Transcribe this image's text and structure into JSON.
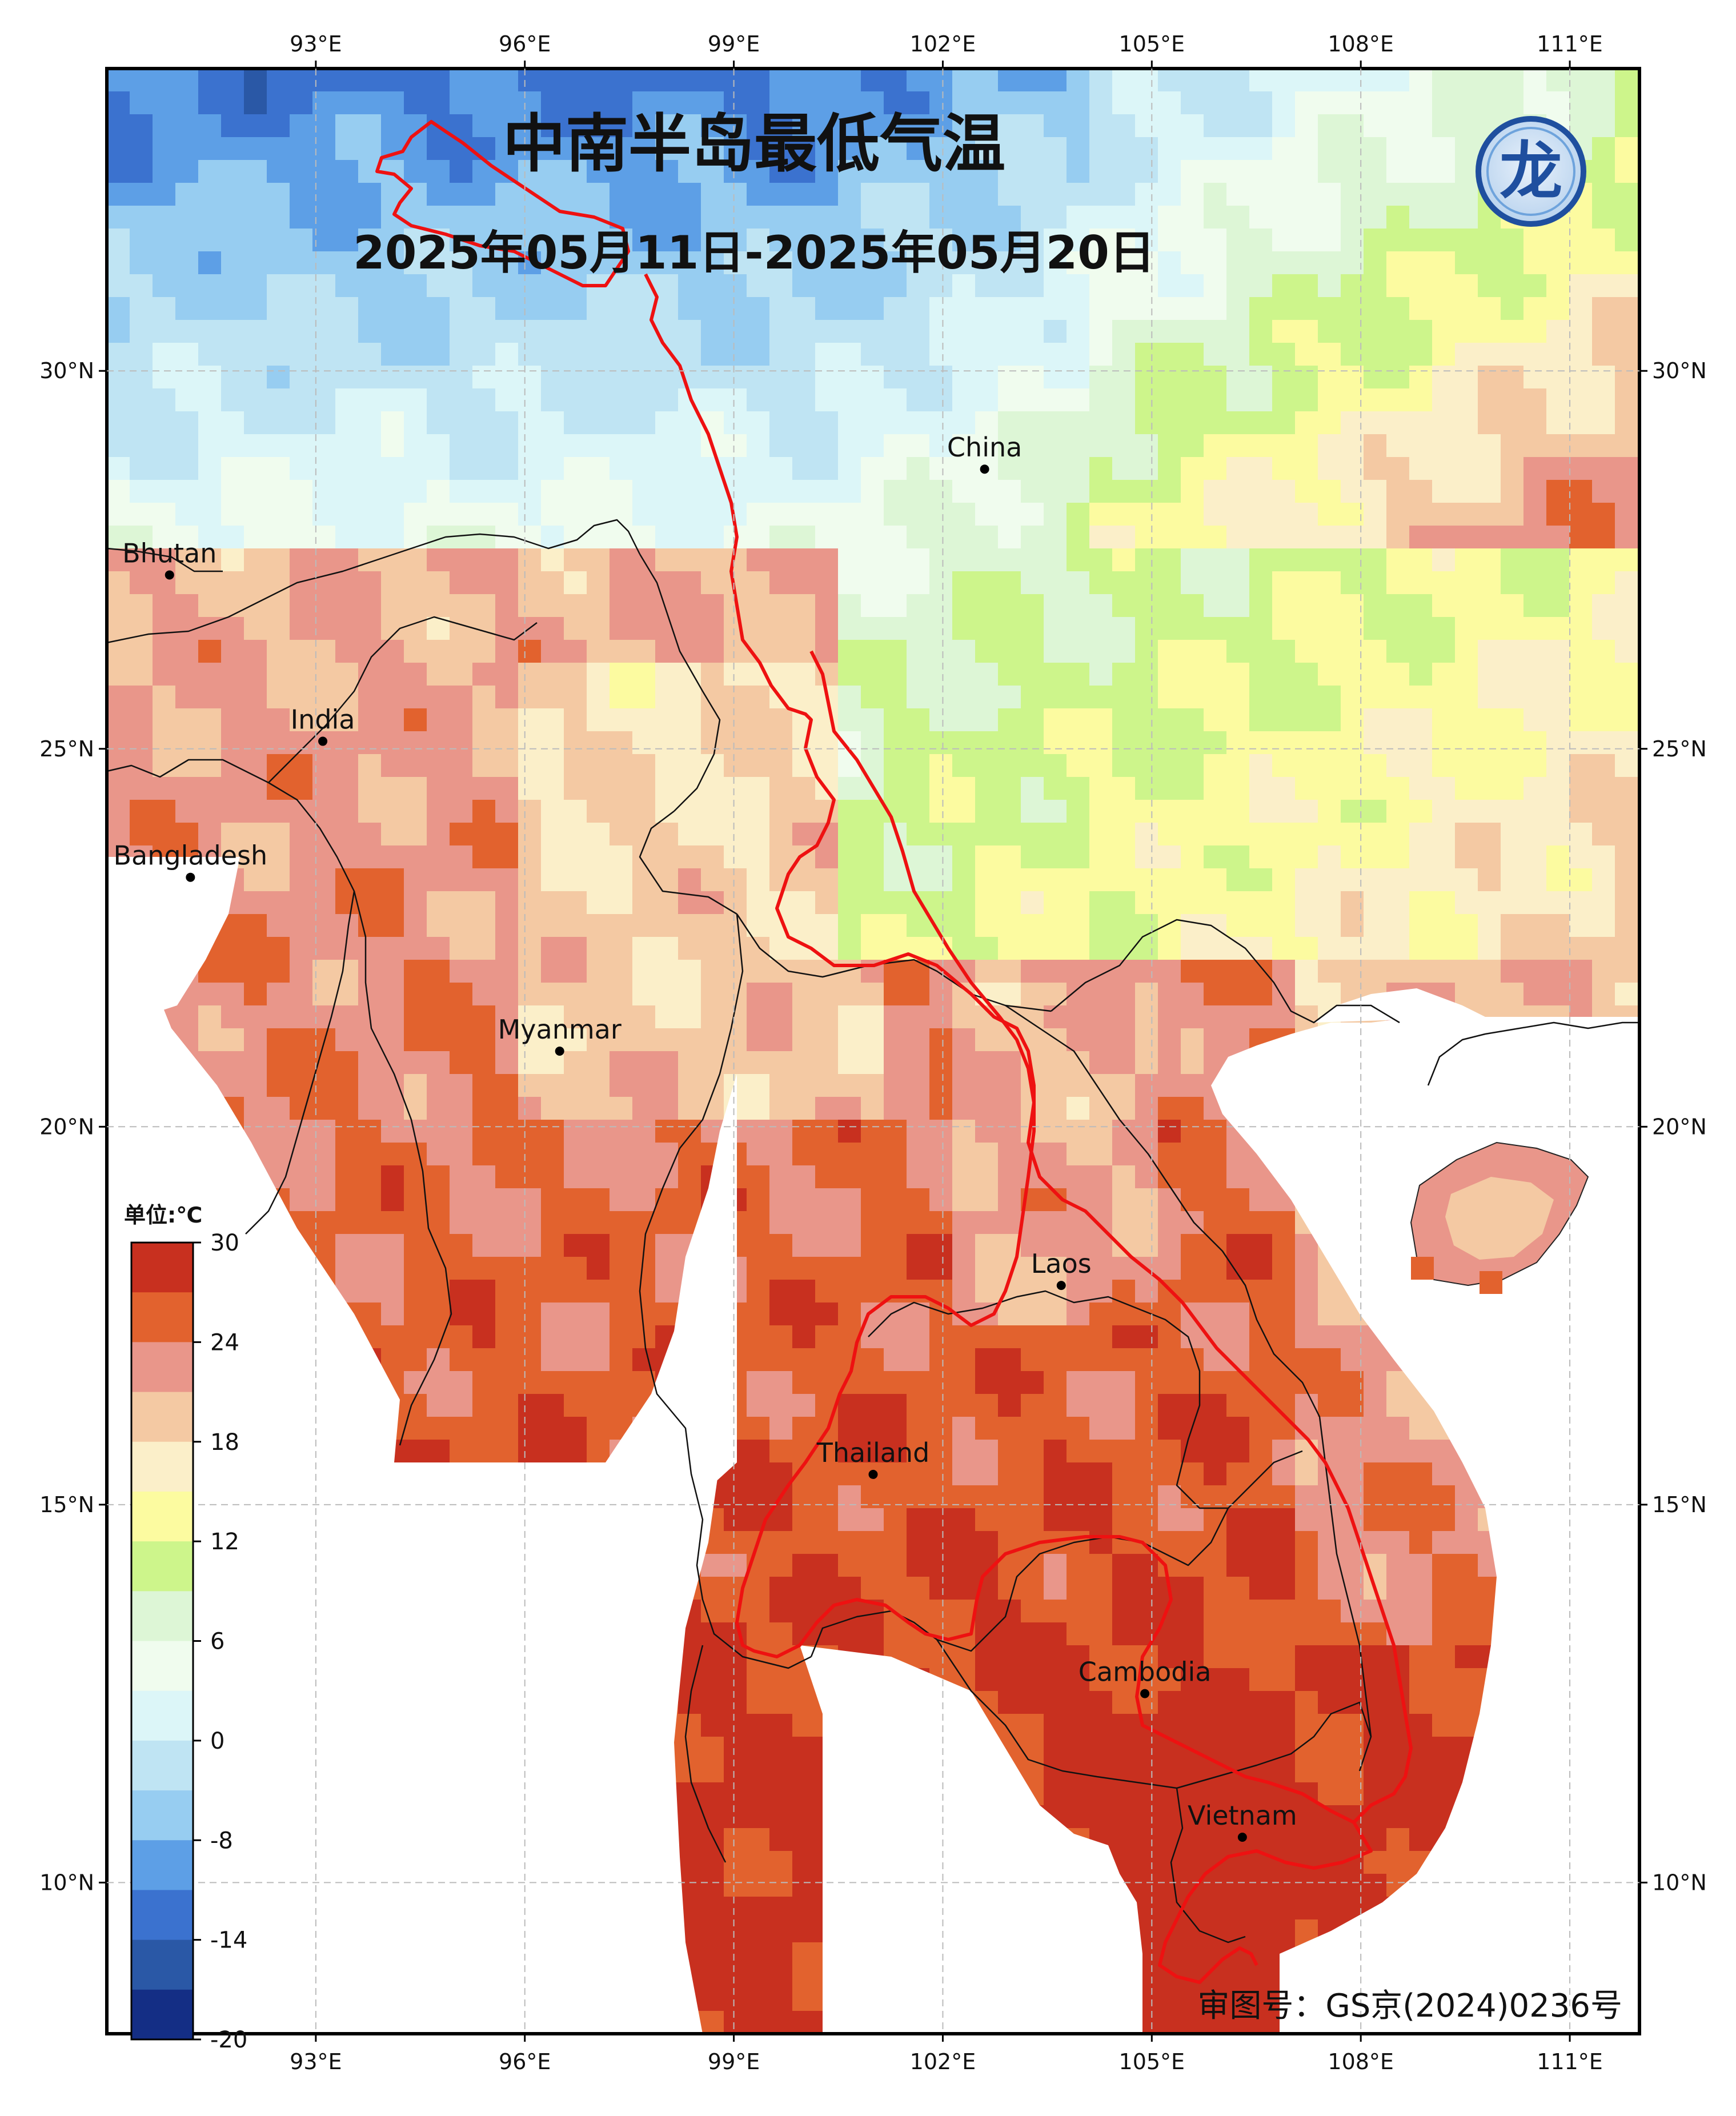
{
  "title": "中南半岛最低气温",
  "subtitle": "2025年05月11日-2025年05月20日",
  "approval_number": "审图号：GS京(2024)0236号",
  "colorbar": {
    "unit_label": "单位:℃",
    "tick_labels": [
      "30",
      "24",
      "18",
      "12",
      "6",
      "0",
      "-8",
      "-14",
      "-20"
    ],
    "colors": [
      "#c8301f",
      "#e2622e",
      "#e9968a",
      "#f4c9a3",
      "#fbefc9",
      "#fcfba0",
      "#cdf58b",
      "#ddf6d6",
      "#f0fcee",
      "#dcf6f8",
      "#bfe4f3",
      "#97cdf1",
      "#5d9fe6",
      "#3b72cf",
      "#2a58a6",
      "#142e85"
    ]
  },
  "axes": {
    "lon_labels": [
      "93°E",
      "96°E",
      "99°E",
      "102°E",
      "105°E",
      "108°E",
      "111°E"
    ],
    "lat_labels": [
      "30°N",
      "25°N",
      "20°N",
      "15°N",
      "10°N"
    ],
    "lon_range": [
      90,
      112
    ],
    "lat_range": [
      8,
      34
    ]
  },
  "places": [
    {
      "name": "Bhutan",
      "lon": 90.9,
      "lat": 27.3
    },
    {
      "name": "India",
      "lon": 93.1,
      "lat": 25.1
    },
    {
      "name": "Bangladesh",
      "lon": 91.2,
      "lat": 23.3
    },
    {
      "name": "Myanmar",
      "lon": 96.5,
      "lat": 21.0
    },
    {
      "name": "China",
      "lon": 102.6,
      "lat": 28.7
    },
    {
      "name": "Laos",
      "lon": 103.7,
      "lat": 17.9
    },
    {
      "name": "Thailand",
      "lon": 101.0,
      "lat": 15.4
    },
    {
      "name": "Cambodia",
      "lon": 104.9,
      "lat": 12.5
    },
    {
      "name": "Vietnam",
      "lon": 106.3,
      "lat": 10.6
    }
  ],
  "logo": {
    "symbol": "龙"
  }
}
